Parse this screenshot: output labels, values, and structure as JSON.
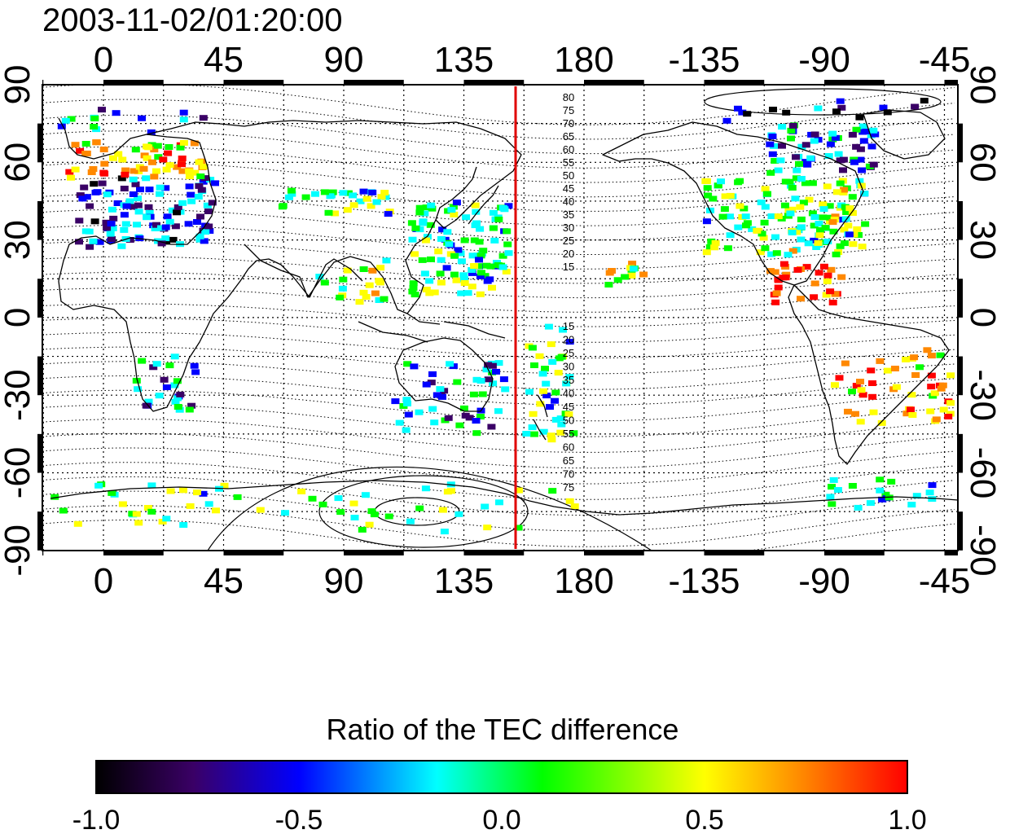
{
  "timestamp": "2003-11-02/01:20:00",
  "top_ticks": [
    "0",
    "45",
    "90",
    "135",
    "180",
    "-135",
    "-90",
    "-45"
  ],
  "bottom_ticks": [
    "0",
    "45",
    "90",
    "135",
    "180",
    "-135",
    "-90",
    "-45"
  ],
  "left_ticks": [
    "90",
    "60",
    "30",
    "0",
    "-30",
    "-60",
    "-90"
  ],
  "right_ticks": [
    "90",
    "60",
    "30",
    "0",
    "-30",
    "-60",
    "-90"
  ],
  "contour_labels_north": [
    "80",
    "75",
    "70",
    "65",
    "60",
    "55",
    "50",
    "45",
    "40",
    "35",
    "30",
    "25",
    "20",
    "15"
  ],
  "contour_labels_south": [
    "15",
    "20",
    "25",
    "30",
    "35",
    "40",
    "45",
    "50",
    "55",
    "60",
    "65",
    "70",
    "75"
  ],
  "colorbar": {
    "title": "Ratio of the TEC difference",
    "tick_labels": [
      "-1.0",
      "-0.5",
      "0.0",
      "0.5",
      "1.0"
    ],
    "range": [
      -1.0,
      1.0
    ],
    "colors": [
      "#000000",
      "#3a0066",
      "#0000ff",
      "#00ffff",
      "#00ff00",
      "#ffff00",
      "#ff8800",
      "#ff0000"
    ]
  },
  "colors": {
    "meridian_line": "#e00000",
    "coast": "#000000",
    "grid": "#000000"
  }
}
